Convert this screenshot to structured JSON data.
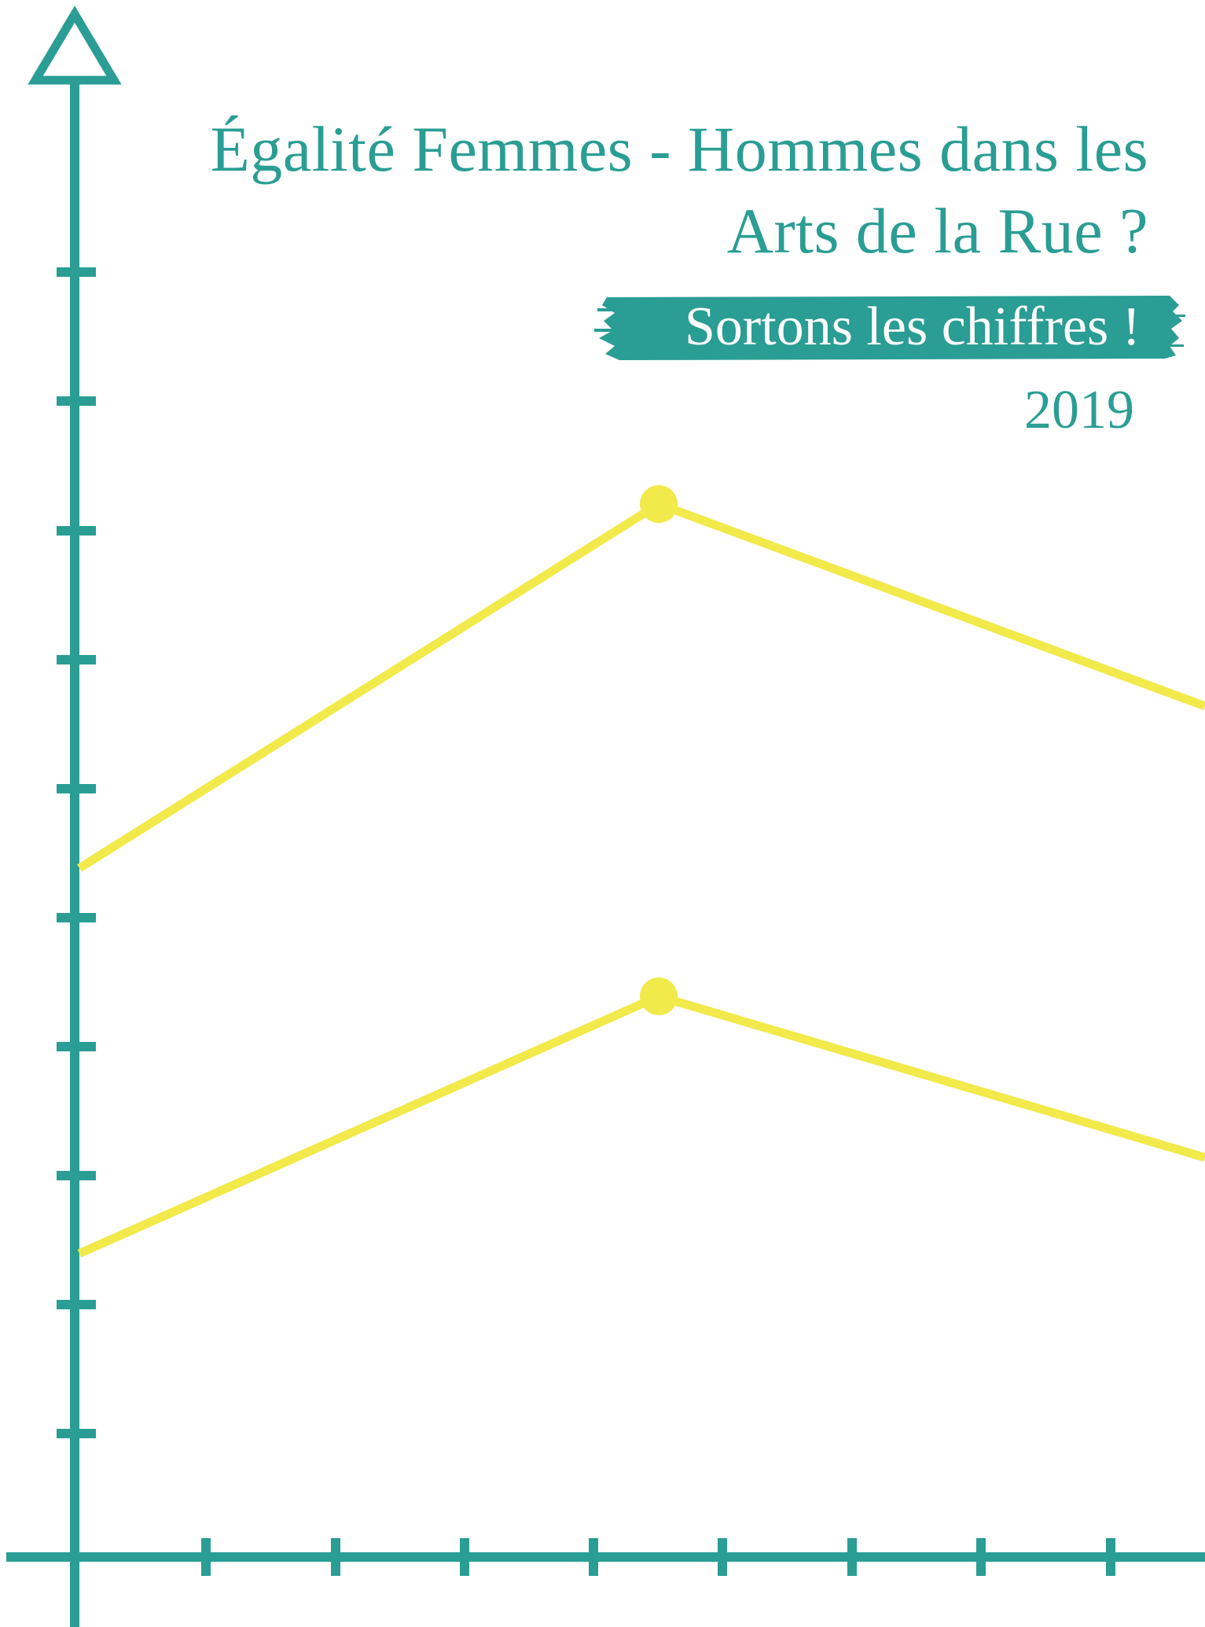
{
  "title": {
    "line1": "Égalité Femmes - Hommes dans les",
    "line2": "Arts de la Rue ?"
  },
  "subtitle": "Sortons les chiffres !",
  "year": "2019",
  "colors": {
    "teal": "#2a9d94",
    "yellow": "#f2e94a",
    "background": "#ffffff"
  }
}
